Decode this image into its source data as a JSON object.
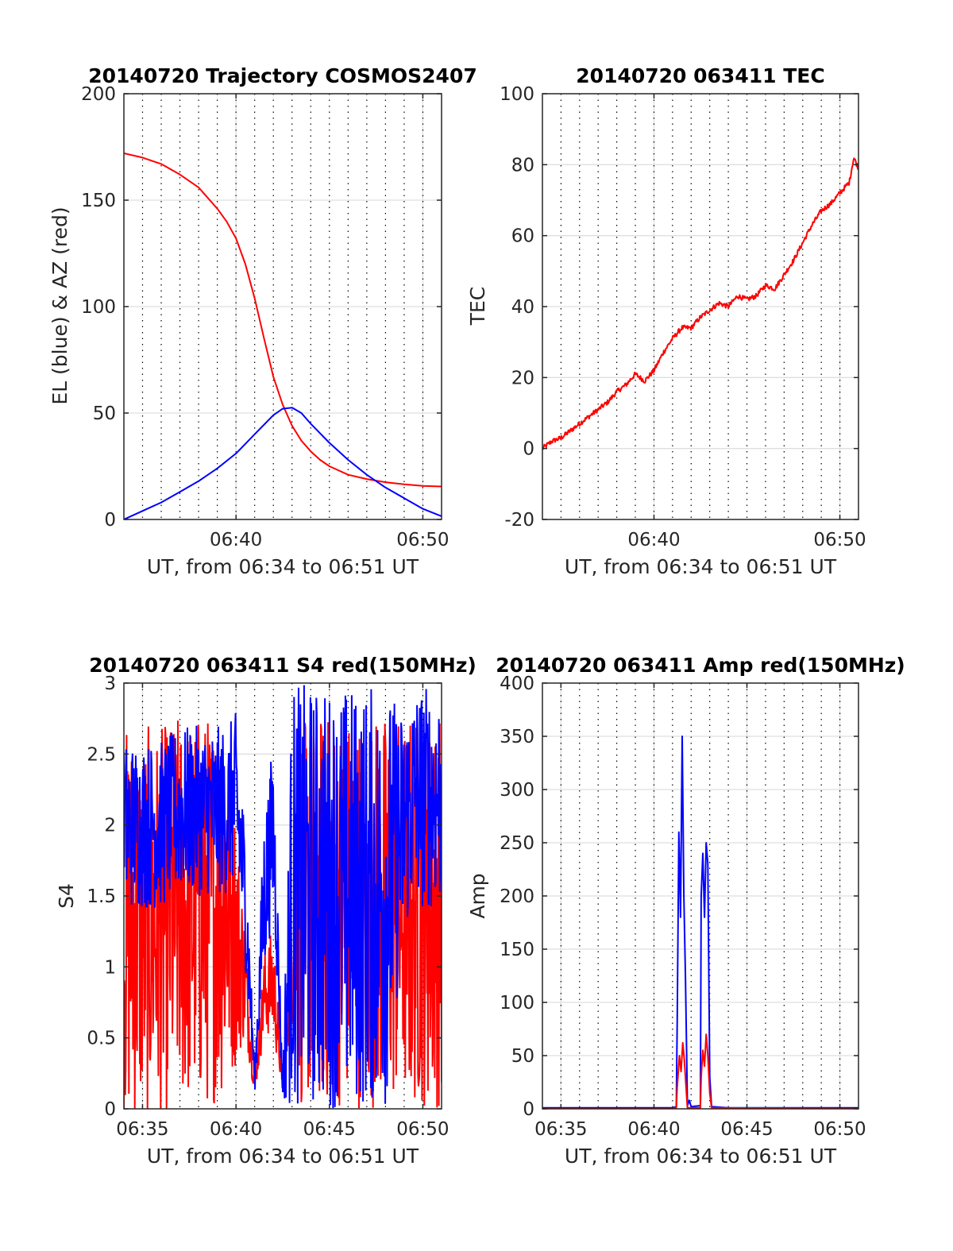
{
  "colors": {
    "red": "#ff0000",
    "blue": "#0000ff",
    "axis": "#262626",
    "grid": "#dfdfdf"
  },
  "chart_data": [
    {
      "type": "line",
      "title": "20140720 Trajectory COSMOS2407",
      "xlabel": "UT, from 06:34 to 06:51 UT",
      "ylabel": "EL (blue) & AZ (red)",
      "xlim": [
        6.5667,
        6.85
      ],
      "ylim": [
        0,
        200
      ],
      "yticks": [
        0,
        50,
        100,
        150,
        200
      ],
      "ytick_labels": [
        "0",
        "50",
        "100",
        "150",
        "200"
      ],
      "xticks": [
        6.6667,
        6.8333
      ],
      "xtick_labels": [
        "06:40",
        "06:50"
      ],
      "minor_dotted_grid_every_minute": true,
      "series": [
        {
          "name": "AZ (red)",
          "color": "red",
          "x": [
            6.5667,
            6.5833,
            6.6,
            6.6167,
            6.6333,
            6.65,
            6.6583,
            6.6667,
            6.675,
            6.6833,
            6.6917,
            6.7,
            6.7083,
            6.7167,
            6.725,
            6.7333,
            6.7417,
            6.75,
            6.7667,
            6.7833,
            6.8,
            6.8167,
            6.8333,
            6.85
          ],
          "y": [
            172,
            170,
            167,
            162,
            156,
            146,
            140,
            132,
            120,
            104,
            85,
            67,
            54,
            44,
            37,
            32,
            28,
            25,
            21,
            19,
            17.5,
            16.5,
            15.8,
            15.5
          ]
        },
        {
          "name": "EL (blue)",
          "color": "blue",
          "x": [
            6.5667,
            6.5833,
            6.6,
            6.6167,
            6.6333,
            6.65,
            6.6667,
            6.6833,
            6.7,
            6.7083,
            6.7167,
            6.725,
            6.7333,
            6.75,
            6.7667,
            6.7833,
            6.8,
            6.8167,
            6.8333,
            6.85
          ],
          "y": [
            0,
            4,
            8,
            13,
            18,
            24,
            31,
            40,
            49,
            52,
            52.5,
            50,
            45,
            36,
            28,
            21,
            15,
            10,
            5,
            1.5
          ]
        }
      ]
    },
    {
      "type": "line",
      "title": "20140720 063411 TEC",
      "xlabel": "UT, from 06:34 to 06:51 UT",
      "ylabel": "TEC",
      "xlim": [
        6.5667,
        6.85
      ],
      "ylim": [
        -20,
        100
      ],
      "yticks": [
        -20,
        0,
        20,
        40,
        60,
        80,
        100
      ],
      "ytick_labels": [
        "-20",
        "0",
        "20",
        "40",
        "60",
        "80",
        "100"
      ],
      "xticks": [
        6.6667,
        6.8333
      ],
      "xtick_labels": [
        "06:40",
        "06:50"
      ],
      "minor_dotted_grid_every_minute": true,
      "series": [
        {
          "name": "TEC",
          "color": "red",
          "x": [
            6.5667,
            6.575,
            6.5833,
            6.5917,
            6.6,
            6.6083,
            6.6167,
            6.625,
            6.6333,
            6.6417,
            6.65,
            6.6583,
            6.6667,
            6.675,
            6.6833,
            6.6917,
            6.7,
            6.7083,
            6.7167,
            6.725,
            6.7333,
            6.7417,
            6.75,
            6.7583,
            6.7667,
            6.775,
            6.7833,
            6.7917,
            6.8,
            6.8083,
            6.8167,
            6.825,
            6.8333,
            6.8417,
            6.8458,
            6.85
          ],
          "y": [
            0,
            2,
            3,
            5,
            7,
            9,
            11,
            13,
            16,
            18,
            21,
            19,
            22,
            27,
            31,
            34,
            34,
            37,
            39,
            41,
            40,
            43,
            42,
            43,
            46,
            45,
            49,
            53,
            58,
            63,
            67,
            69,
            72,
            75,
            82,
            79
          ]
        }
      ]
    },
    {
      "type": "line",
      "title": "20140720 063411 S4 red(150MHz)",
      "xlabel": "UT, from 06:34 to 06:51 UT",
      "ylabel": "S4",
      "xlim": [
        6.5667,
        6.85
      ],
      "ylim": [
        0,
        3
      ],
      "yticks": [
        0,
        0.5,
        1,
        1.5,
        2,
        2.5,
        3
      ],
      "ytick_labels": [
        "0",
        "0.5",
        "1",
        "1.5",
        "2",
        "2.5",
        "3"
      ],
      "xticks": [
        6.5833,
        6.6667,
        6.75,
        6.8333
      ],
      "xtick_labels": [
        "06:35",
        "06:40",
        "06:45",
        "06:50"
      ],
      "minor_dotted_grid_every_minute": true,
      "series": [
        {
          "name": "S4 red",
          "color": "red",
          "noisy": true,
          "x": [
            6.5667,
            6.5833,
            6.6,
            6.6167,
            6.6333,
            6.6417,
            6.6583,
            6.675,
            6.6833,
            6.6917,
            6.7,
            6.7083,
            6.7167,
            6.725,
            6.7333,
            6.7417,
            6.75,
            6.7667,
            6.7833,
            6.8,
            6.8167,
            6.825,
            6.8333,
            6.85
          ],
          "center": [
            1.3,
            1.3,
            1.3,
            1.4,
            1.4,
            1.4,
            1.5,
            0.9,
            0.15,
            0.8,
            0.9,
            0.15,
            1.1,
            1.4,
            1.4,
            1.4,
            1.4,
            1.4,
            1.4,
            1.4,
            1.4,
            1.4,
            1.4,
            1.4
          ],
          "spread": [
            1.4,
            1.4,
            1.4,
            1.4,
            1.4,
            1.4,
            1.4,
            0.4,
            0.05,
            0.3,
            0.4,
            0.05,
            0.5,
            1.4,
            1.4,
            1.4,
            1.4,
            1.4,
            1.4,
            1.4,
            1.4,
            1.4,
            1.4,
            1.4
          ]
        },
        {
          "name": "S4 blue",
          "color": "blue",
          "noisy": true,
          "x": [
            6.5667,
            6.5833,
            6.6,
            6.6167,
            6.6333,
            6.6417,
            6.6583,
            6.6667,
            6.675,
            6.6833,
            6.6917,
            6.7,
            6.7083,
            6.7167,
            6.725,
            6.7333,
            6.7417,
            6.75,
            6.7667,
            6.7833,
            6.8,
            6.8167,
            6.825,
            6.8333,
            6.85
          ],
          "center": [
            2.0,
            2.0,
            2.0,
            2.1,
            2.1,
            2.1,
            2.1,
            2.2,
            1.5,
            0.2,
            1.5,
            2.0,
            0.15,
            1.5,
            1.5,
            1.5,
            1.5,
            1.5,
            1.5,
            1.5,
            1.5,
            2.0,
            2.2,
            2.2,
            2.2
          ],
          "spread": [
            0.6,
            0.6,
            0.6,
            0.6,
            0.6,
            0.6,
            0.6,
            0.6,
            0.5,
            0.1,
            0.6,
            0.6,
            0.1,
            1.5,
            1.5,
            1.5,
            1.5,
            1.5,
            1.5,
            1.5,
            1.5,
            0.8,
            0.8,
            0.8,
            0.8
          ]
        }
      ]
    },
    {
      "type": "line",
      "title": "20140720 063411 Amp red(150MHz)",
      "xlabel": "UT, from 06:34 to 06:51 UT",
      "ylabel": "Amp",
      "xlim": [
        6.5667,
        6.85
      ],
      "ylim": [
        0,
        400
      ],
      "yticks": [
        0,
        50,
        100,
        150,
        200,
        250,
        300,
        350,
        400
      ],
      "ytick_labels": [
        "0",
        "50",
        "100",
        "150",
        "200",
        "250",
        "300",
        "350",
        "400"
      ],
      "xticks": [
        6.5833,
        6.6667,
        6.75,
        6.8333
      ],
      "xtick_labels": [
        "06:35",
        "06:40",
        "06:45",
        "06:50"
      ],
      "minor_dotted_grid_every_minute": true,
      "series": [
        {
          "name": "Amp blue",
          "color": "blue",
          "x": [
            6.5667,
            6.6833,
            6.6867,
            6.6875,
            6.689,
            6.6905,
            6.692,
            6.6935,
            6.695,
            6.6967,
            6.6983,
            6.7,
            6.7083,
            6.709,
            6.7105,
            6.712,
            6.7135,
            6.715,
            6.7167,
            6.7183,
            6.7333,
            6.85
          ],
          "y": [
            1,
            1,
            2,
            80,
            260,
            180,
            350,
            200,
            120,
            3,
            8,
            2,
            3,
            200,
            240,
            180,
            250,
            230,
            30,
            2,
            1,
            1
          ]
        },
        {
          "name": "Amp red",
          "color": "red",
          "x": [
            6.5667,
            6.6833,
            6.6867,
            6.6875,
            6.6895,
            6.691,
            6.6925,
            6.694,
            6.6955,
            6.6967,
            6.7083,
            6.709,
            6.7105,
            6.712,
            6.7135,
            6.715,
            6.7167,
            6.7183,
            6.85
          ],
          "y": [
            0,
            0,
            1,
            20,
            50,
            35,
            62,
            45,
            20,
            1,
            1,
            30,
            55,
            40,
            70,
            50,
            15,
            1,
            0
          ]
        }
      ]
    }
  ]
}
